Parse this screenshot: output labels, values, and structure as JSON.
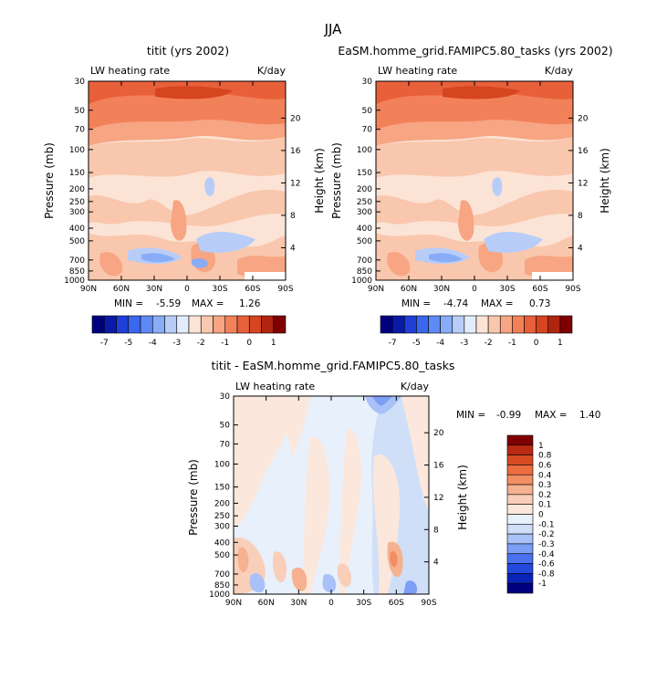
{
  "main_title": "JJA",
  "colors": {
    "abs_levels": [
      "#00007f",
      "#0a1aa8",
      "#1f3fd6",
      "#3b66ee",
      "#5d8af5",
      "#88acf8",
      "#b7cdf8",
      "#e3ecfa",
      "#fbe4d6",
      "#f9c7ad",
      "#f7a582",
      "#f2815a",
      "#e8603a",
      "#d64420",
      "#b02510",
      "#7f0000"
    ],
    "diff_levels": [
      "#00007f",
      "#0a24b8",
      "#2348de",
      "#4a72f0",
      "#7c9ff6",
      "#a8c1f8",
      "#cfdff8",
      "#e8f0fb",
      "#fbe7dc",
      "#f9cfb9",
      "#f6b190",
      "#f28e63",
      "#ec6d3f",
      "#d84a22",
      "#b82a12",
      "#7f0000"
    ]
  },
  "chart_data": [
    {
      "id": "model",
      "type": "heatmap",
      "title": "titit (yrs 2002)",
      "left_label": "LW heating rate",
      "right_label": "K/day",
      "xlabel": "",
      "ylabel": "Pressure (mb)",
      "y2label": "Height (km)",
      "xticks": [
        "90N",
        "60N",
        "30N",
        "0",
        "30S",
        "60S",
        "90S"
      ],
      "yticks": [
        "30",
        "50",
        "70",
        "100",
        "150",
        "200",
        "250",
        "300",
        "400",
        "500",
        "700",
        "850",
        "1000"
      ],
      "y2ticks": [
        "20",
        "16",
        "12",
        "8",
        "4"
      ],
      "stats": {
        "min_label": "MIN =",
        "min": "-5.59",
        "max_label": "MAX =",
        "max": "1.26"
      }
    },
    {
      "id": "control",
      "type": "heatmap",
      "title": "EaSM.homme_grid.FAMIPC5.80_tasks (yrs 2002)",
      "left_label": "LW heating rate",
      "right_label": "K/day",
      "xlabel": "",
      "ylabel": "Pressure (mb)",
      "y2label": "Height (km)",
      "xticks": [
        "90N",
        "60N",
        "30N",
        "0",
        "30S",
        "60S",
        "90S"
      ],
      "yticks": [
        "30",
        "50",
        "70",
        "100",
        "150",
        "200",
        "250",
        "300",
        "400",
        "500",
        "700",
        "850",
        "1000"
      ],
      "y2ticks": [
        "20",
        "16",
        "12",
        "8",
        "4"
      ],
      "stats": {
        "min_label": "MIN =",
        "min": "-4.74",
        "max_label": "MAX =",
        "max": "0.73"
      }
    },
    {
      "id": "difference",
      "type": "heatmap",
      "title": "titit - EaSM.homme_grid.FAMIPC5.80_tasks",
      "left_label": "LW heating rate",
      "right_label": "K/day",
      "xlabel": "",
      "ylabel": "Pressure (mb)",
      "y2label": "Height (km)",
      "xticks": [
        "90N",
        "60N",
        "30N",
        "0",
        "30S",
        "60S",
        "90S"
      ],
      "yticks": [
        "30",
        "50",
        "70",
        "100",
        "150",
        "200",
        "250",
        "300",
        "400",
        "500",
        "700",
        "850",
        "1000"
      ],
      "y2ticks": [
        "20",
        "16",
        "12",
        "8",
        "4"
      ],
      "stats": {
        "min_label": "MIN =",
        "min": "-0.99",
        "max_label": "MAX =",
        "max": "1.40"
      }
    }
  ],
  "colorbars": {
    "absolute": {
      "labels": [
        "-7",
        "-5",
        "-4",
        "-3",
        "-2",
        "-1",
        "0",
        "1"
      ]
    },
    "difference": {
      "labels": [
        "1",
        "0.8",
        "0.6",
        "0.4",
        "0.3",
        "0.2",
        "0.1",
        "0",
        "-0.1",
        "-0.2",
        "-0.3",
        "-0.4",
        "-0.6",
        "-0.8",
        "-1"
      ]
    }
  }
}
